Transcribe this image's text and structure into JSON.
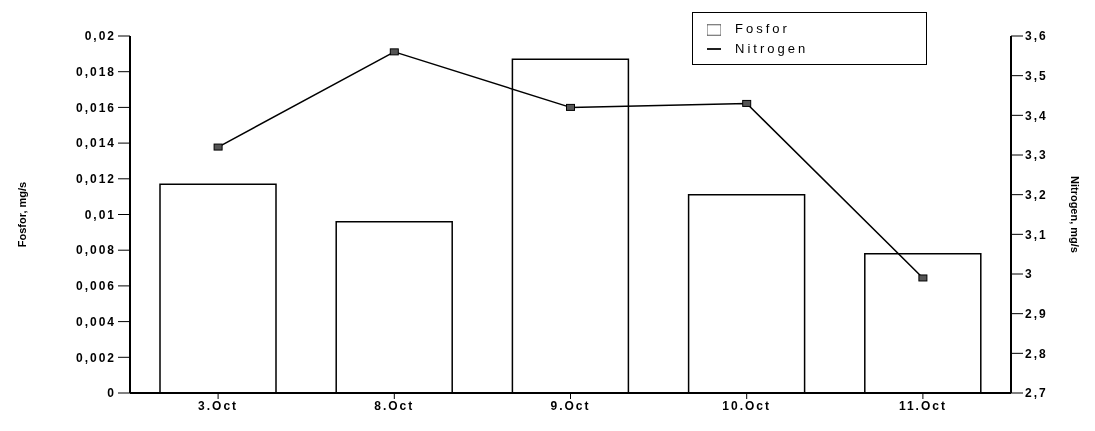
{
  "chart_data": {
    "type": "bar",
    "xlabel": null,
    "ylabel": "Fosfor, mg/s",
    "y2label": "Nitrogen, mg/s",
    "categories": [
      "3.Oct",
      "8.Oct",
      "9.Oct",
      "10.Oct",
      "11.Oct"
    ],
    "series": [
      {
        "name": "Fosfor",
        "color": "#ffffff",
        "values": [
          0.0117,
          0.0096,
          0.0187,
          0.0111,
          0.0078
        ]
      },
      {
        "name": "Nitrogen",
        "type": "line",
        "axis": "y2",
        "color": "#000000",
        "values": [
          3.32,
          3.56,
          3.42,
          3.43,
          2.99
        ]
      }
    ],
    "ylim": [
      0,
      0.02
    ],
    "yticks": [
      {
        "value": 0,
        "label": "0"
      },
      {
        "value": 0.002,
        "label": "0,002"
      },
      {
        "value": 0.004,
        "label": "0,004"
      },
      {
        "value": 0.006,
        "label": "0,006"
      },
      {
        "value": 0.008,
        "label": "0,008"
      },
      {
        "value": 0.01,
        "label": "0,01"
      },
      {
        "value": 0.012,
        "label": "0,012"
      },
      {
        "value": 0.014,
        "label": "0,014"
      },
      {
        "value": 0.016,
        "label": "0,016"
      },
      {
        "value": 0.018,
        "label": "0,018"
      },
      {
        "value": 0.02,
        "label": "0,02"
      }
    ],
    "y2lim": [
      2.7,
      3.6
    ],
    "y2ticks": [
      {
        "value": 2.7,
        "label": "2,7"
      },
      {
        "value": 2.8,
        "label": "2,8"
      },
      {
        "value": 2.9,
        "label": "2,9"
      },
      {
        "value": 3,
        "label": "3"
      },
      {
        "value": 3.1,
        "label": "3,1"
      },
      {
        "value": 3.2,
        "label": "3,2"
      },
      {
        "value": 3.3,
        "label": "3,3"
      },
      {
        "value": 3.4,
        "label": "3,4"
      },
      {
        "value": 3.5,
        "label": "3,5"
      },
      {
        "value": 3.6,
        "label": "3,6"
      }
    ],
    "grid": false,
    "legend": "top right",
    "marker": "square",
    "line_style": "solid"
  }
}
